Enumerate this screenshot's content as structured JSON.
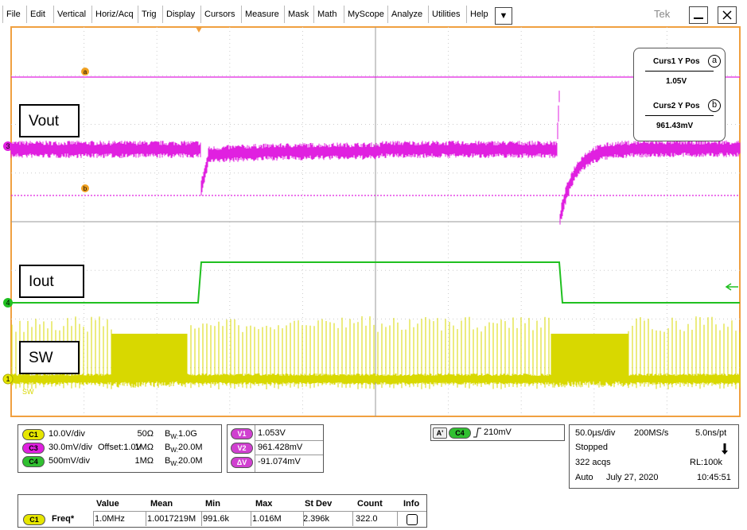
{
  "menu": [
    "File",
    "Edit",
    "Vertical",
    "Horiz/Acq",
    "Trig",
    "Display",
    "Cursors",
    "Measure",
    "Mask",
    "Math",
    "MyScope",
    "Analyze",
    "Utilities",
    "Help"
  ],
  "logo": "Tek",
  "traces": {
    "labels": [
      "Vout",
      "Iout",
      "SW"
    ],
    "channel_markers": [
      "3",
      "4",
      "1"
    ],
    "sw_tag": "SW"
  },
  "cursor_markers": [
    "a",
    "b"
  ],
  "cursor_box": {
    "curs1_label": "Curs1 Y Pos",
    "curs1_marker": "a",
    "curs1_value": "1.05V",
    "curs2_label": "Curs2 Y Pos",
    "curs2_marker": "b",
    "curs2_value": "961.43mV"
  },
  "bw": {
    "symbol": "B",
    "sub": "W:"
  },
  "channels": [
    {
      "badge": "C1",
      "scale": "10.0V/div",
      "offset": "",
      "term": "50Ω",
      "bw": "1.0G"
    },
    {
      "badge": "C3",
      "scale": "30.0mV/div",
      "offset": "Offset:1.0V",
      "term": "1MΩ",
      "bw": "20.0M"
    },
    {
      "badge": "C4",
      "scale": "500mV/div",
      "offset": "",
      "term": "1MΩ",
      "bw": "20.0M"
    }
  ],
  "cursor_readout": [
    {
      "badge": "V1",
      "value": "1.053V"
    },
    {
      "badge": "V2",
      "value": "961.428mV"
    },
    {
      "badge": "ΔV",
      "value": "-91.074mV"
    }
  ],
  "trigger": {
    "source": "A'",
    "channel": "C4",
    "level": "210mV"
  },
  "acquisition": {
    "time_div": "50.0µs/div",
    "sample_rate": "200MS/s",
    "resolution": "5.0ns/pt",
    "state": "Stopped",
    "acqs": "322 acqs",
    "record_length": "RL:100k",
    "mode": "Auto",
    "date": "July 27, 2020",
    "time": "10:45:51"
  },
  "measurement": {
    "headers": [
      "Value",
      "Mean",
      "Min",
      "Max",
      "St Dev",
      "Count",
      "Info"
    ],
    "rows": [
      {
        "channel": "C1",
        "name": "Freq*",
        "cells": [
          "1.0MHz",
          "1.0017219M",
          "991.6k",
          "1.016M",
          "2.396k",
          "322.0"
        ]
      }
    ]
  }
}
